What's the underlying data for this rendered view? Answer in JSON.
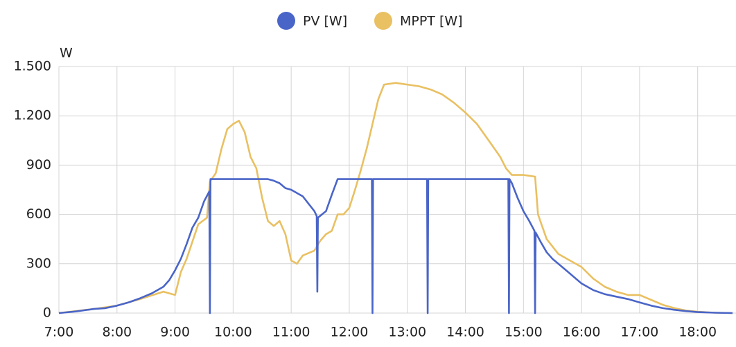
{
  "chart_data": {
    "type": "line",
    "y_axis_label": "W",
    "xlim": [
      7,
      18.66
    ],
    "ylim": [
      0,
      1500
    ],
    "xticks": [
      {
        "value": 7,
        "label": "7:00"
      },
      {
        "value": 8,
        "label": "8:00"
      },
      {
        "value": 9,
        "label": "9:00"
      },
      {
        "value": 10,
        "label": "10:00"
      },
      {
        "value": 11,
        "label": "11:00"
      },
      {
        "value": 12,
        "label": "12:00"
      },
      {
        "value": 13,
        "label": "13:00"
      },
      {
        "value": 14,
        "label": "14:00"
      },
      {
        "value": 15,
        "label": "15:00"
      },
      {
        "value": 16,
        "label": "16:00"
      },
      {
        "value": 17,
        "label": "17:00"
      },
      {
        "value": 18,
        "label": "18:00"
      }
    ],
    "yticks": [
      0,
      300,
      600,
      900,
      {
        "value": 1200,
        "label": "1.200"
      },
      {
        "value": 1500,
        "label": "1.500"
      }
    ],
    "grid": true,
    "series": [
      {
        "name": "PV [W]",
        "color": "#4a65c8",
        "x": [
          7.0,
          7.3,
          7.6,
          7.8,
          8.0,
          8.2,
          8.4,
          8.6,
          8.8,
          8.9,
          9.0,
          9.1,
          9.2,
          9.3,
          9.4,
          9.5,
          9.59,
          9.6,
          9.61,
          9.8,
          10.0,
          10.3,
          10.6,
          10.7,
          10.8,
          10.9,
          11.0,
          11.2,
          11.4,
          11.44,
          11.45,
          11.46,
          11.6,
          11.7,
          11.8,
          12.0,
          12.39,
          12.4,
          12.41,
          12.8,
          13.34,
          13.35,
          13.36,
          14.0,
          14.5,
          14.74,
          14.75,
          14.76,
          14.8,
          14.9,
          15.0,
          15.1,
          15.19,
          15.2,
          15.21,
          15.3,
          15.4,
          15.5,
          15.6,
          15.7,
          15.8,
          16.0,
          16.2,
          16.4,
          16.6,
          16.8,
          17.0,
          17.2,
          17.4,
          17.6,
          17.8,
          18.0,
          18.3,
          18.6
        ],
        "values": [
          0,
          10,
          25,
          30,
          45,
          65,
          90,
          120,
          160,
          200,
          260,
          330,
          420,
          520,
          580,
          680,
          740,
          0,
          815,
          815,
          815,
          815,
          815,
          805,
          790,
          760,
          750,
          710,
          620,
          590,
          130,
          580,
          620,
          720,
          815,
          815,
          815,
          0,
          815,
          815,
          815,
          0,
          815,
          815,
          815,
          815,
          0,
          815,
          790,
          700,
          620,
          560,
          500,
          0,
          490,
          430,
          370,
          330,
          300,
          270,
          240,
          180,
          140,
          115,
          100,
          85,
          65,
          45,
          30,
          20,
          12,
          6,
          2,
          0
        ]
      },
      {
        "name": "MPPT [W]",
        "color": "#e9c062",
        "x": [
          7.0,
          7.6,
          8.0,
          8.4,
          8.8,
          9.0,
          9.1,
          9.2,
          9.4,
          9.55,
          9.6,
          9.7,
          9.8,
          9.9,
          10.0,
          10.1,
          10.2,
          10.3,
          10.4,
          10.5,
          10.6,
          10.7,
          10.8,
          10.9,
          11.0,
          11.1,
          11.2,
          11.4,
          11.5,
          11.6,
          11.7,
          11.8,
          11.9,
          12.0,
          12.1,
          12.2,
          12.3,
          12.4,
          12.5,
          12.6,
          12.8,
          13.0,
          13.2,
          13.4,
          13.6,
          13.8,
          14.0,
          14.2,
          14.4,
          14.6,
          14.7,
          14.8,
          15.0,
          15.2,
          15.25,
          15.4,
          15.6,
          15.8,
          16.0,
          16.2,
          16.4,
          16.6,
          16.8,
          17.0,
          17.2,
          17.4,
          17.6,
          17.8,
          18.0,
          18.3,
          18.6
        ],
        "values": [
          0,
          25,
          45,
          85,
          130,
          110,
          250,
          330,
          540,
          580,
          800,
          850,
          1000,
          1120,
          1150,
          1170,
          1100,
          950,
          880,
          700,
          560,
          530,
          560,
          480,
          320,
          300,
          350,
          380,
          440,
          480,
          500,
          600,
          600,
          640,
          750,
          870,
          1000,
          1150,
          1300,
          1390,
          1400,
          1390,
          1380,
          1360,
          1330,
          1280,
          1220,
          1150,
          1050,
          950,
          880,
          840,
          840,
          830,
          600,
          450,
          360,
          320,
          280,
          210,
          160,
          130,
          110,
          110,
          80,
          50,
          30,
          15,
          8,
          2,
          0
        ]
      }
    ]
  }
}
